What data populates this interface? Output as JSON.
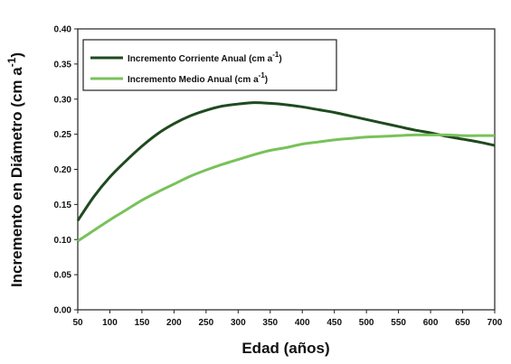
{
  "chart_data": {
    "type": "line",
    "xlabel": "Edad (años)",
    "ylabel": "Incremento en Diámetro (cm a",
    "ylabel_sup": "-1",
    "ylabel_close": ")",
    "xlim": [
      50,
      700
    ],
    "ylim": [
      0.0,
      0.4
    ],
    "x_ticks": [
      "50",
      "100",
      "150",
      "200",
      "250",
      "300",
      "350",
      "400",
      "450",
      "500",
      "550",
      "600",
      "650",
      "700"
    ],
    "y_ticks": [
      "0.00",
      "0.05",
      "0.10",
      "0.15",
      "0.20",
      "0.25",
      "0.30",
      "0.35",
      "0.40"
    ],
    "grid": false,
    "legend_position": "top-left",
    "series": [
      {
        "name": "Incremento Corriente Anual (cm a",
        "name_sup": "-1",
        "name_close": ")",
        "color": "#1f4a1f",
        "x": [
          50,
          75,
          100,
          125,
          150,
          175,
          200,
          225,
          250,
          275,
          300,
          325,
          350,
          375,
          400,
          425,
          450,
          475,
          500,
          525,
          550,
          575,
          600,
          625,
          650,
          675,
          700
        ],
        "values": [
          0.127,
          0.161,
          0.189,
          0.212,
          0.233,
          0.251,
          0.265,
          0.276,
          0.284,
          0.29,
          0.293,
          0.295,
          0.294,
          0.292,
          0.289,
          0.285,
          0.281,
          0.276,
          0.271,
          0.266,
          0.261,
          0.256,
          0.252,
          0.247,
          0.243,
          0.239,
          0.234
        ]
      },
      {
        "name": "Incremento Medio Anual (cm a",
        "name_sup": "-1",
        "name_close": ")",
        "color": "#78c25a",
        "x": [
          50,
          75,
          100,
          125,
          150,
          175,
          200,
          225,
          250,
          275,
          300,
          325,
          350,
          375,
          400,
          425,
          450,
          475,
          500,
          525,
          550,
          575,
          600,
          625,
          650,
          675,
          700
        ],
        "values": [
          0.098,
          0.113,
          0.128,
          0.142,
          0.156,
          0.168,
          0.179,
          0.19,
          0.199,
          0.207,
          0.214,
          0.221,
          0.227,
          0.231,
          0.236,
          0.239,
          0.242,
          0.244,
          0.246,
          0.247,
          0.248,
          0.249,
          0.249,
          0.249,
          0.248,
          0.248,
          0.248
        ]
      }
    ]
  }
}
